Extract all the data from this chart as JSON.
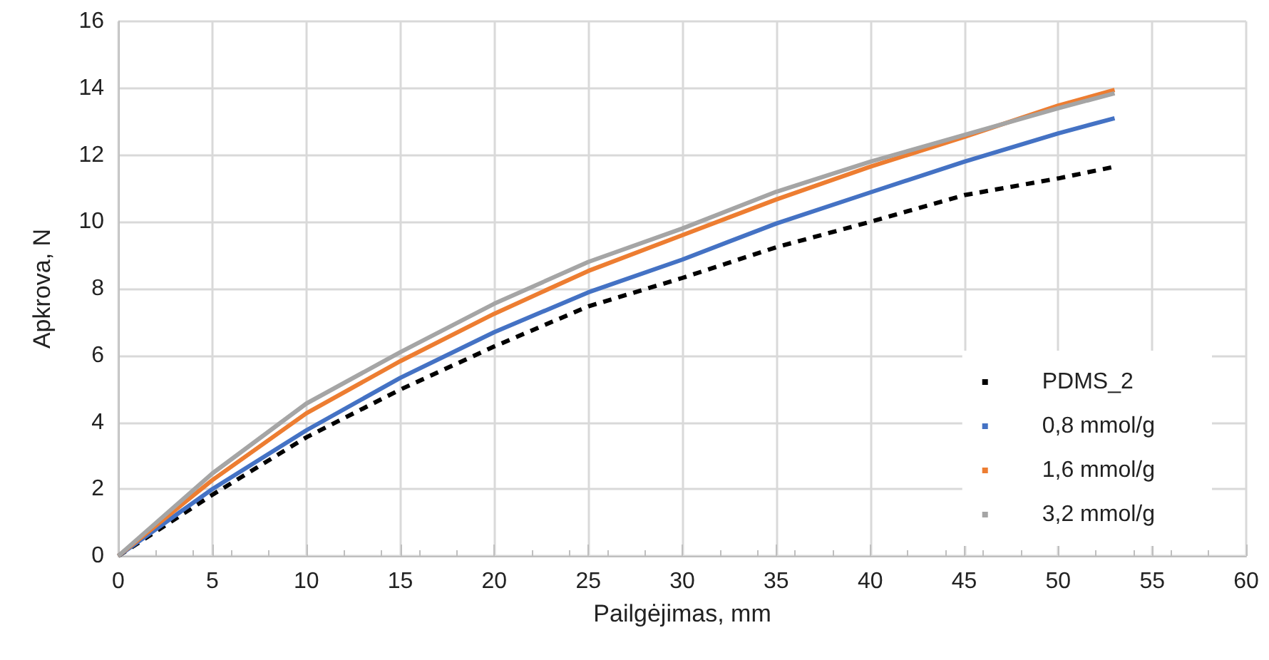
{
  "chart_data": {
    "type": "line",
    "xlabel": "Pailgėjimas, mm",
    "ylabel": "Apkrova, N",
    "xlim": [
      0,
      60
    ],
    "xticks": [
      0,
      5,
      10,
      15,
      20,
      25,
      30,
      35,
      40,
      45,
      50,
      55,
      60
    ],
    "ylim": [
      0,
      16
    ],
    "yticks": [
      0,
      2,
      4,
      6,
      8,
      10,
      12,
      14,
      16
    ],
    "grid": true,
    "legend": "bottom right",
    "marker": "none",
    "x": [
      0,
      5,
      10,
      15,
      20,
      25,
      30,
      35,
      40,
      45,
      50,
      53
    ],
    "series": [
      {
        "name": "PDMS_2",
        "color": "#000000",
        "line_style": "dashed",
        "values": [
          0,
          1.83,
          3.55,
          4.98,
          6.27,
          7.47,
          8.32,
          9.24,
          10.0,
          10.8,
          11.3,
          11.65
        ]
      },
      {
        "name": "0,8 mmol/g",
        "color": "#4472c4",
        "values": [
          0,
          2.0,
          3.76,
          5.33,
          6.7,
          7.89,
          8.87,
          9.95,
          10.88,
          11.8,
          12.65,
          13.1
        ]
      },
      {
        "name": "1,6 mmol/g",
        "color": "#ed7d31",
        "values": [
          0,
          2.27,
          4.27,
          5.83,
          7.25,
          8.53,
          9.6,
          10.67,
          11.65,
          12.54,
          13.48,
          13.95
        ]
      },
      {
        "name": "3,2 mmol/g",
        "color": "#a5a5a5",
        "values": [
          0,
          2.47,
          4.56,
          6.1,
          7.55,
          8.8,
          9.8,
          10.9,
          11.8,
          12.6,
          13.4,
          13.85
        ]
      }
    ]
  }
}
